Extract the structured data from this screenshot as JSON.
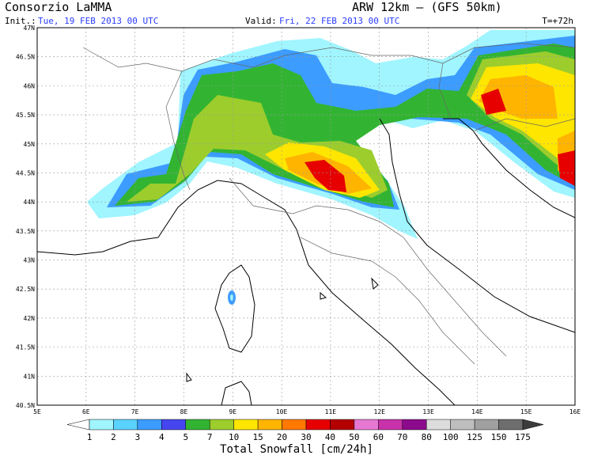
{
  "header": {
    "title": "Consorzio LaMMA",
    "model": "ARW 12km – (GFS 50km)",
    "init_label": "Init.:",
    "init": "Tue, 19 FEB 2013  00 UTC",
    "valid_label": "Valid:",
    "valid": "Fri, 22 FEB 2013  00 UTC",
    "lead": "T=+72h"
  },
  "map": {
    "lon_labels": [
      "5E",
      "6E",
      "7E",
      "8E",
      "9E",
      "10E",
      "11E",
      "12E",
      "13E",
      "14E",
      "15E",
      "16E"
    ],
    "lat_labels": [
      "47N",
      "46.5N",
      "46N",
      "45.5N",
      "45N",
      "44.5N",
      "44N",
      "43.5N",
      "43N",
      "42.5N",
      "42N",
      "41.5N",
      "41N",
      "40.5N"
    ]
  },
  "colorbar": {
    "title": "Total Snowfall [cm/24h]",
    "levels": [
      "1",
      "2",
      "3",
      "4",
      "5",
      "7",
      "10",
      "15",
      "20",
      "30",
      "40",
      "50",
      "60",
      "70",
      "80",
      "100",
      "125",
      "150",
      "175"
    ],
    "colors": [
      "#ffffff",
      "#a0f5ff",
      "#5ad2ff",
      "#3c9cff",
      "#4646f0",
      "#32b432",
      "#9ccd2d",
      "#ffe600",
      "#ffb400",
      "#ff7800",
      "#e60000",
      "#b40000",
      "#e678d2",
      "#c832aa",
      "#8c0a8c",
      "#dcdcdc",
      "#bebebe",
      "#a0a0a0",
      "#6e6e6e",
      "#3c3c3c"
    ]
  }
}
